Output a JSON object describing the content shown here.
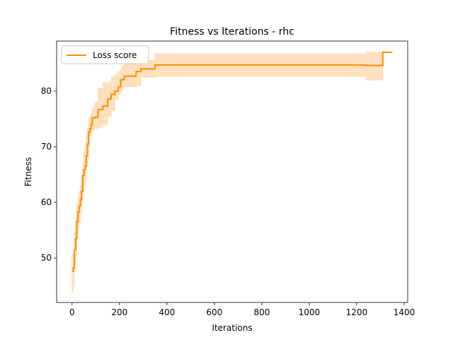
{
  "chart_data": {
    "type": "line",
    "title": "Fitness vs Iterations - rhc",
    "xlabel": "Iterations",
    "ylabel": "Fitness",
    "xlim": [
      -65,
      1415
    ],
    "ylim": [
      42,
      89
    ],
    "xticks": [
      0,
      200,
      400,
      600,
      800,
      1000,
      1200,
      1400
    ],
    "yticks": [
      50,
      60,
      70,
      80
    ],
    "grid": false,
    "legend_placement": "upper-left",
    "series": [
      {
        "name": "Loss score",
        "color": "#ff8c00",
        "band_color": "#ffdcb4",
        "step": true,
        "x": [
          0,
          5,
          10,
          15,
          20,
          25,
          30,
          35,
          40,
          45,
          50,
          55,
          60,
          65,
          70,
          75,
          80,
          85,
          95,
          110,
          130,
          150,
          165,
          180,
          195,
          205,
          210,
          220,
          240,
          270,
          290,
          350,
          1220,
          1240,
          1300,
          1310,
          1350
        ],
        "y": [
          47.6,
          48.2,
          51.5,
          53.5,
          56.5,
          58.3,
          59.3,
          60.5,
          62.0,
          64.8,
          65.8,
          66.5,
          68.4,
          70.5,
          72.6,
          73.2,
          74.0,
          75.2,
          75.3,
          76.7,
          77.3,
          78.6,
          79.4,
          80.0,
          80.8,
          82.0,
          82.1,
          82.7,
          82.7,
          83.5,
          84.0,
          84.7,
          84.7,
          84.6,
          84.6,
          87.0,
          87.0
        ],
        "y_lower": [
          44.0,
          45.0,
          48.5,
          50.5,
          53.5,
          55.6,
          56.5,
          58.0,
          60.0,
          62.0,
          63.0,
          64.0,
          66.5,
          68.0,
          70.0,
          72.0,
          72.8,
          73.0,
          73.2,
          73.5,
          74.0,
          75.5,
          76.5,
          78.5,
          79.5,
          80.0,
          80.5,
          80.8,
          80.8,
          81.0,
          82.5,
          82.7,
          82.7,
          82.0,
          82.0,
          87.0,
          87.0
        ],
        "y_upper": [
          50.5,
          51.0,
          54.5,
          57.0,
          59.5,
          61.0,
          62.0,
          63.0,
          64.5,
          67.0,
          69.0,
          70.0,
          72.0,
          73.5,
          75.0,
          75.5,
          76.0,
          77.0,
          78.0,
          80.5,
          81.5,
          81.5,
          82.5,
          83.0,
          83.5,
          84.0,
          84.5,
          85.0,
          85.0,
          85.5,
          85.5,
          86.7,
          86.7,
          87.0,
          87.0,
          87.0,
          87.0
        ]
      }
    ]
  }
}
